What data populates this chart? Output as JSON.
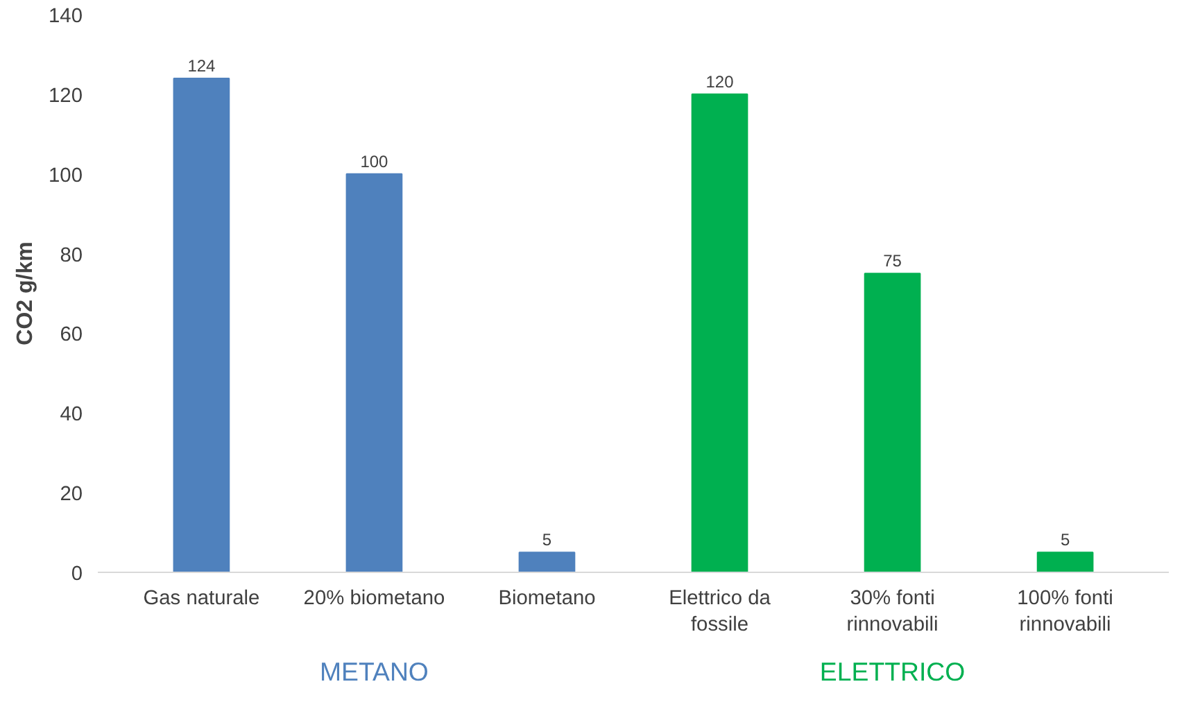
{
  "chart_data": {
    "type": "bar",
    "ylabel": "CO2 g/km",
    "categories": [
      "Gas naturale",
      "20% biometano",
      "Biometano",
      "Elettrico da\nfossile",
      "30% fonti\nrinnovabili",
      "100% fonti\nrinnovabili"
    ],
    "values": [
      124,
      100,
      5,
      120,
      75,
      5
    ],
    "colors": [
      "#4f81bd",
      "#4f81bd",
      "#4f81bd",
      "#00b050",
      "#00b050",
      "#00b050"
    ],
    "ylim": [
      0,
      140
    ],
    "yticks": [
      0,
      20,
      40,
      60,
      80,
      100,
      120,
      140
    ],
    "data_labels": true,
    "grid": false,
    "annotations": [
      "METANO",
      "ELETTRICO"
    ]
  }
}
